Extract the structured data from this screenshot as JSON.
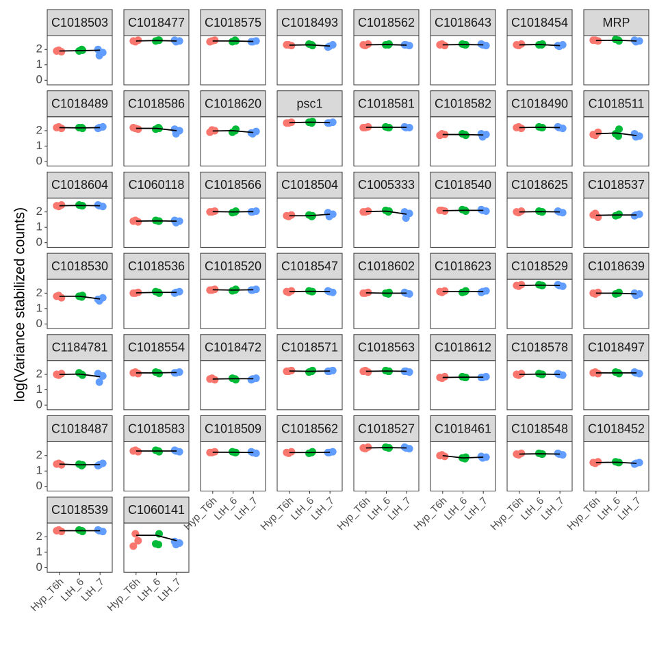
{
  "chart_data": {
    "type": "facet-scatter",
    "y_label": "log(Variance stabilized counts)",
    "categories": [
      "Hyp_T6h",
      "LtH_6",
      "LtH_7"
    ],
    "colors": [
      "#F8766D",
      "#00BA38",
      "#619CFF"
    ],
    "ylim": [
      -0.3,
      2.9
    ],
    "yticks": [
      0,
      1,
      2
    ],
    "panels": [
      {
        "title": "C1018503",
        "values": [
          [
            1.9,
            1.85,
            1.95
          ],
          [
            2.0,
            1.9,
            1.95
          ],
          [
            1.6,
            1.8,
            2.0
          ]
        ],
        "line": [
          1.9,
          1.92,
          1.95
        ]
      },
      {
        "title": "C1018477",
        "values": [
          [
            2.55,
            2.6,
            2.5
          ],
          [
            2.6,
            2.55,
            2.6
          ],
          [
            2.5,
            2.55,
            2.6
          ]
        ],
        "line": [
          2.55,
          2.58,
          2.55
        ]
      },
      {
        "title": "C1018575",
        "values": [
          [
            2.5,
            2.6,
            2.55
          ],
          [
            2.6,
            2.5,
            2.55
          ],
          [
            2.5,
            2.55,
            2.5
          ]
        ],
        "line": [
          2.55,
          2.55,
          2.52
        ]
      },
      {
        "title": "C1018493",
        "values": [
          [
            2.3,
            2.25,
            2.3
          ],
          [
            2.3,
            2.35,
            2.25
          ],
          [
            2.2,
            2.3,
            2.15
          ]
        ],
        "line": [
          2.28,
          2.3,
          2.22
        ]
      },
      {
        "title": "C1018562",
        "values": [
          [
            2.3,
            2.35,
            2.25
          ],
          [
            2.3,
            2.3,
            2.35
          ],
          [
            2.3,
            2.25,
            2.3
          ]
        ],
        "line": [
          2.3,
          2.32,
          2.28
        ]
      },
      {
        "title": "C1018643",
        "values": [
          [
            2.3,
            2.25,
            2.35
          ],
          [
            2.3,
            2.35,
            2.3
          ],
          [
            2.3,
            2.25,
            2.35
          ]
        ],
        "line": [
          2.3,
          2.32,
          2.3
        ]
      },
      {
        "title": "C1018454",
        "values": [
          [
            2.3,
            2.35,
            2.25
          ],
          [
            2.3,
            2.3,
            2.35
          ],
          [
            2.2,
            2.3,
            2.25
          ]
        ],
        "line": [
          2.3,
          2.32,
          2.25
        ]
      },
      {
        "title": "MRP",
        "values": [
          [
            2.6,
            2.55,
            2.6
          ],
          [
            2.6,
            2.65,
            2.55
          ],
          [
            2.5,
            2.55,
            2.6
          ]
        ],
        "line": [
          2.58,
          2.6,
          2.55
        ]
      },
      {
        "title": "C1018489",
        "values": [
          [
            2.2,
            2.15,
            2.25
          ],
          [
            2.2,
            2.2,
            2.15
          ],
          [
            2.2,
            2.25,
            2.15
          ]
        ],
        "line": [
          2.2,
          2.18,
          2.2
        ]
      },
      {
        "title": "C1018586",
        "values": [
          [
            2.2,
            2.1,
            2.15
          ],
          [
            2.2,
            2.1,
            2.15
          ],
          [
            1.8,
            2.0,
            2.1
          ]
        ],
        "line": [
          2.15,
          2.15,
          2.0
        ]
      },
      {
        "title": "C1018620",
        "values": [
          [
            1.9,
            2.0,
            2.05
          ],
          [
            2.0,
            1.9,
            2.1
          ],
          [
            1.8,
            1.95,
            1.85
          ]
        ],
        "line": [
          1.98,
          2.0,
          1.88
        ]
      },
      {
        "title": "psc1",
        "values": [
          [
            2.5,
            2.55,
            2.5
          ],
          [
            2.5,
            2.55,
            2.6
          ],
          [
            2.5,
            2.55,
            2.5
          ]
        ],
        "line": [
          2.52,
          2.55,
          2.52
        ]
      },
      {
        "title": "C1018581",
        "values": [
          [
            2.2,
            2.25,
            2.2
          ],
          [
            2.2,
            2.25,
            2.2
          ],
          [
            2.2,
            2.2,
            2.25
          ]
        ],
        "line": [
          2.22,
          2.22,
          2.22
        ]
      },
      {
        "title": "C1018582",
        "values": [
          [
            1.7,
            1.75,
            1.8
          ],
          [
            1.75,
            1.8,
            1.7
          ],
          [
            1.6,
            1.75,
            1.8
          ]
        ],
        "line": [
          1.75,
          1.75,
          1.72
        ]
      },
      {
        "title": "C1018490",
        "values": [
          [
            2.2,
            2.15,
            2.25
          ],
          [
            2.2,
            2.25,
            2.2
          ],
          [
            2.2,
            2.15,
            2.25
          ]
        ],
        "line": [
          2.2,
          2.22,
          2.2
        ]
      },
      {
        "title": "C1018511",
        "values": [
          [
            1.75,
            1.9,
            1.7
          ],
          [
            1.65,
            1.8,
            2.1
          ],
          [
            1.6,
            1.65,
            1.8
          ]
        ],
        "line": [
          1.8,
          1.85,
          1.68
        ]
      },
      {
        "title": "C1018604",
        "values": [
          [
            2.4,
            2.45,
            2.35
          ],
          [
            2.4,
            2.45,
            2.4
          ],
          [
            2.4,
            2.35,
            2.45
          ]
        ],
        "line": [
          2.4,
          2.42,
          2.4
        ]
      },
      {
        "title": "C1060118",
        "values": [
          [
            1.4,
            1.35,
            1.45
          ],
          [
            1.4,
            1.45,
            1.4
          ],
          [
            1.3,
            1.4,
            1.45
          ]
        ],
        "line": [
          1.4,
          1.42,
          1.4
        ]
      },
      {
        "title": "C1018566",
        "values": [
          [
            2.0,
            2.05,
            2.0
          ],
          [
            2.0,
            1.95,
            2.05
          ],
          [
            2.0,
            2.05,
            2.0
          ]
        ],
        "line": [
          2.02,
          2.0,
          2.02
        ]
      },
      {
        "title": "C1018504",
        "values": [
          [
            1.75,
            1.8,
            1.7
          ],
          [
            1.7,
            1.8,
            1.75
          ],
          [
            1.7,
            1.85,
            1.95
          ]
        ],
        "line": [
          1.75,
          1.75,
          1.85
        ]
      },
      {
        "title": "C1005333",
        "values": [
          [
            2.0,
            2.05,
            2.0
          ],
          [
            2.0,
            2.1,
            2.05
          ],
          [
            1.6,
            1.9,
            2.0
          ]
        ],
        "line": [
          2.02,
          2.05,
          1.85
        ]
      },
      {
        "title": "C1018540",
        "values": [
          [
            2.1,
            2.05,
            2.1
          ],
          [
            2.1,
            2.15,
            2.05
          ],
          [
            2.1,
            2.05,
            2.15
          ]
        ],
        "line": [
          2.08,
          2.1,
          2.1
        ]
      },
      {
        "title": "C1018625",
        "values": [
          [
            2.0,
            2.05,
            1.95
          ],
          [
            2.0,
            2.05,
            2.0
          ],
          [
            2.0,
            1.95,
            2.05
          ]
        ],
        "line": [
          2.0,
          2.02,
          2.0
        ]
      },
      {
        "title": "C1018537",
        "values": [
          [
            1.8,
            1.65,
            1.9
          ],
          [
            1.8,
            1.75,
            1.85
          ],
          [
            1.8,
            1.85,
            1.75
          ]
        ],
        "line": [
          1.78,
          1.8,
          1.8
        ]
      },
      {
        "title": "C1018530",
        "values": [
          [
            1.8,
            1.7,
            1.85
          ],
          [
            1.75,
            1.8,
            1.85
          ],
          [
            1.5,
            1.7,
            1.6
          ]
        ],
        "line": [
          1.8,
          1.8,
          1.62
        ]
      },
      {
        "title": "C1018536",
        "values": [
          [
            2.0,
            2.05,
            2.0
          ],
          [
            2.05,
            2.1,
            2.0
          ],
          [
            2.05,
            2.1,
            2.0
          ]
        ],
        "line": [
          2.02,
          2.05,
          2.05
        ]
      },
      {
        "title": "C1018520",
        "values": [
          [
            2.2,
            2.25,
            2.2
          ],
          [
            2.2,
            2.15,
            2.25
          ],
          [
            2.2,
            2.25,
            2.2
          ]
        ],
        "line": [
          2.22,
          2.2,
          2.22
        ]
      },
      {
        "title": "C1018547",
        "values": [
          [
            2.1,
            2.15,
            2.05
          ],
          [
            2.1,
            2.15,
            2.1
          ],
          [
            2.1,
            2.05,
            2.15
          ]
        ],
        "line": [
          2.1,
          2.12,
          2.1
        ]
      },
      {
        "title": "C1018602",
        "values": [
          [
            2.0,
            2.05,
            2.0
          ],
          [
            1.95,
            2.0,
            2.05
          ],
          [
            2.0,
            1.95,
            2.05
          ]
        ],
        "line": [
          2.02,
          2.0,
          2.0
        ]
      },
      {
        "title": "C1018623",
        "values": [
          [
            2.1,
            2.15,
            2.05
          ],
          [
            2.1,
            2.05,
            2.15
          ],
          [
            2.1,
            2.15,
            2.05
          ]
        ],
        "line": [
          2.1,
          2.1,
          2.1
        ]
      },
      {
        "title": "C1018529",
        "values": [
          [
            2.5,
            2.55,
            2.45
          ],
          [
            2.5,
            2.55,
            2.5
          ],
          [
            2.5,
            2.45,
            2.55
          ]
        ],
        "line": [
          2.5,
          2.52,
          2.5
        ]
      },
      {
        "title": "C1018639",
        "values": [
          [
            2.0,
            2.05,
            1.95
          ],
          [
            2.0,
            1.95,
            2.05
          ],
          [
            1.85,
            1.95,
            2.0
          ]
        ],
        "line": [
          2.0,
          2.0,
          1.95
        ]
      },
      {
        "title": "C1184781",
        "values": [
          [
            2.0,
            2.05,
            1.95
          ],
          [
            2.0,
            2.1,
            1.95
          ],
          [
            1.5,
            1.9,
            2.05
          ]
        ],
        "line": [
          2.0,
          2.02,
          1.85
        ]
      },
      {
        "title": "C1018554",
        "values": [
          [
            2.1,
            2.05,
            2.15
          ],
          [
            2.1,
            2.15,
            2.05
          ],
          [
            2.1,
            2.15,
            2.1
          ]
        ],
        "line": [
          2.1,
          2.1,
          2.12
        ]
      },
      {
        "title": "C1018472",
        "values": [
          [
            1.7,
            1.65,
            1.75
          ],
          [
            1.7,
            1.75,
            1.65
          ],
          [
            1.7,
            1.75,
            1.65
          ]
        ],
        "line": [
          1.7,
          1.72,
          1.72
        ]
      },
      {
        "title": "C1018571",
        "values": [
          [
            2.2,
            2.25,
            2.2
          ],
          [
            2.2,
            2.15,
            2.25
          ],
          [
            2.2,
            2.25,
            2.2
          ]
        ],
        "line": [
          2.22,
          2.2,
          2.22
        ]
      },
      {
        "title": "C1018563",
        "values": [
          [
            2.2,
            2.15,
            2.25
          ],
          [
            2.2,
            2.25,
            2.2
          ],
          [
            2.2,
            2.15,
            2.2
          ]
        ],
        "line": [
          2.2,
          2.22,
          2.2
        ]
      },
      {
        "title": "C1018612",
        "values": [
          [
            1.8,
            1.85,
            1.75
          ],
          [
            1.8,
            1.85,
            1.8
          ],
          [
            1.8,
            1.85,
            1.8
          ]
        ],
        "line": [
          1.8,
          1.82,
          1.82
        ]
      },
      {
        "title": "C1018578",
        "values": [
          [
            2.0,
            2.05,
            1.95
          ],
          [
            2.0,
            2.05,
            2.0
          ],
          [
            2.0,
            1.95,
            2.05
          ]
        ],
        "line": [
          2.0,
          2.02,
          2.0
        ]
      },
      {
        "title": "C1018497",
        "values": [
          [
            2.1,
            2.05,
            2.15
          ],
          [
            2.1,
            2.15,
            2.05
          ],
          [
            2.1,
            2.05,
            2.15
          ]
        ],
        "line": [
          2.1,
          2.1,
          2.1
        ]
      },
      {
        "title": "C1018487",
        "values": [
          [
            1.45,
            1.4,
            1.5
          ],
          [
            1.35,
            1.45,
            1.4
          ],
          [
            1.4,
            1.5,
            1.35
          ]
        ],
        "line": [
          1.45,
          1.4,
          1.42
        ]
      },
      {
        "title": "C1018583",
        "values": [
          [
            2.3,
            2.25,
            2.35
          ],
          [
            2.3,
            2.35,
            2.25
          ],
          [
            2.3,
            2.25,
            2.35
          ]
        ],
        "line": [
          2.3,
          2.3,
          2.3
        ]
      },
      {
        "title": "C1018509",
        "values": [
          [
            2.2,
            2.25,
            2.2
          ],
          [
            2.2,
            2.25,
            2.2
          ],
          [
            2.2,
            2.15,
            2.25
          ]
        ],
        "line": [
          2.22,
          2.22,
          2.2
        ]
      },
      {
        "title": "C1018562",
        "values": [
          [
            2.2,
            2.25,
            2.15
          ],
          [
            2.2,
            2.15,
            2.25
          ],
          [
            2.2,
            2.25,
            2.2
          ]
        ],
        "line": [
          2.2,
          2.2,
          2.22
        ]
      },
      {
        "title": "C1018527",
        "values": [
          [
            2.5,
            2.55,
            2.45
          ],
          [
            2.5,
            2.55,
            2.5
          ],
          [
            2.5,
            2.45,
            2.55
          ]
        ],
        "line": [
          2.5,
          2.52,
          2.5
        ]
      },
      {
        "title": "C1018461",
        "values": [
          [
            2.0,
            1.95,
            2.05
          ],
          [
            1.8,
            1.85,
            1.9
          ],
          [
            1.85,
            1.9,
            1.95
          ]
        ],
        "line": [
          2.0,
          1.85,
          1.9
        ]
      },
      {
        "title": "C1018548",
        "values": [
          [
            2.1,
            2.15,
            2.05
          ],
          [
            2.1,
            2.15,
            2.1
          ],
          [
            2.1,
            2.05,
            2.15
          ]
        ],
        "line": [
          2.1,
          2.12,
          2.1
        ]
      },
      {
        "title": "C1018452",
        "values": [
          [
            1.55,
            1.6,
            1.5
          ],
          [
            1.55,
            1.6,
            1.55
          ],
          [
            1.5,
            1.55,
            1.45
          ]
        ],
        "line": [
          1.55,
          1.57,
          1.5
        ]
      },
      {
        "title": "C1018539",
        "values": [
          [
            2.4,
            2.35,
            2.45
          ],
          [
            2.4,
            2.45,
            2.35
          ],
          [
            2.4,
            2.35,
            2.45
          ]
        ],
        "line": [
          2.4,
          2.4,
          2.4
        ]
      },
      {
        "title": "C1060141",
        "values": [
          [
            1.4,
            1.75,
            2.2
          ],
          [
            1.5,
            1.55,
            2.2
          ],
          [
            1.5,
            1.6,
            1.7
          ]
        ],
        "line": [
          2.1,
          2.1,
          1.75
        ]
      }
    ]
  }
}
